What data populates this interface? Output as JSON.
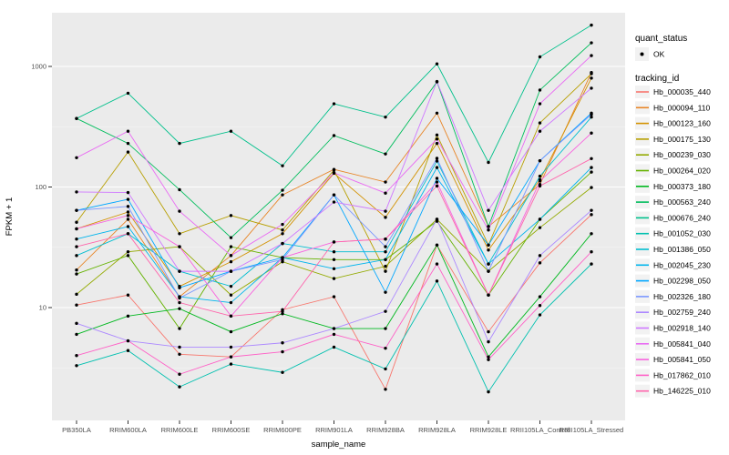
{
  "figure": {
    "y_axis": {
      "label": "FPKM + 1",
      "tick_labels": [
        "10",
        "100",
        "1000"
      ],
      "scale": "log10"
    },
    "x_axis": {
      "label": "sample_name"
    },
    "legend": {
      "quant_status": {
        "title": "quant_status",
        "items": [
          {
            "label": "OK",
            "marker": "black-point"
          }
        ]
      },
      "tracking": {
        "title": "tracking_id"
      }
    },
    "colors": {
      "panel_background": "#EBEBEB",
      "major_grid": "#FFFFFF",
      "minor_grid": "#F5F5F5",
      "tick_text": "#4D4D4D",
      "axis_title_text": "#000000",
      "point_color": "#000000",
      "legend_key_background": "#F2F2F2"
    }
  },
  "chart_data": {
    "type": "line",
    "title": "",
    "xlabel": "sample_name",
    "ylabel": "FPKM + 1",
    "yscale": "log10",
    "ylim": [
      1.16,
      2790
    ],
    "yticks": [
      10,
      100,
      1000
    ],
    "minor_gridlines": [
      3.162,
      31.62,
      316.2
    ],
    "grid": true,
    "legend_position": "right",
    "markers": "black points at every vertex (quant_status OK)",
    "categories": [
      "PB350LA",
      "RRIM600LA",
      "RRIM600LE",
      "RRIM600SE",
      "RRIM600PE",
      "RRIM901LA",
      "RRIM928BA",
      "RRIM928LA",
      "RRIM928LE",
      "RRII105LA_Control",
      "RRII105LA_Stressed"
    ],
    "series": [
      {
        "name": "Hb_000035_440",
        "color": "#F8766D",
        "values": [
          10.5,
          12.7,
          4.1,
          3.9,
          9.6,
          12.3,
          2.1,
          33,
          6.3,
          23.5,
          59
        ]
      },
      {
        "name": "Hb_000094_110",
        "color": "#E88526",
        "values": [
          20.5,
          54,
          12.3,
          27,
          86,
          140,
          110,
          410,
          47,
          105,
          890
        ]
      },
      {
        "name": "Hb_000123_160",
        "color": "#D39200",
        "values": [
          45,
          62,
          15,
          24,
          41,
          130,
          56,
          230,
          30,
          115,
          800
        ]
      },
      {
        "name": "Hb_000175_130",
        "color": "#B79F00",
        "values": [
          51,
          195,
          41,
          58,
          44,
          138,
          20,
          270,
          33,
          340,
          870
        ]
      },
      {
        "name": "Hb_000239_030",
        "color": "#93AA00",
        "values": [
          12.9,
          29,
          32,
          12.7,
          24,
          17.4,
          22,
          54,
          20,
          46,
          99
        ]
      },
      {
        "name": "Hb_000264_020",
        "color": "#64B200",
        "values": [
          19,
          27,
          6.7,
          32,
          26,
          25,
          25,
          52,
          12.7,
          54,
          133
        ]
      },
      {
        "name": "Hb_000373_180",
        "color": "#00B81F",
        "values": [
          6.0,
          8.5,
          9.8,
          6.3,
          8.9,
          6.7,
          6.7,
          33,
          3.9,
          12.3,
          41
        ]
      },
      {
        "name": "Hb_000563_240",
        "color": "#00BD5C",
        "values": [
          370,
          230,
          95,
          38,
          94,
          267,
          188,
          745,
          47,
          637,
          1570
        ]
      },
      {
        "name": "Hb_000676_240",
        "color": "#00C08B",
        "values": [
          370,
          600,
          230,
          290,
          150,
          490,
          380,
          1050,
          160,
          1200,
          2200
        ]
      },
      {
        "name": "Hb_001052_030",
        "color": "#00C0AF",
        "values": [
          3.3,
          4.4,
          2.2,
          3.4,
          2.9,
          4.7,
          3.1,
          16.6,
          2.0,
          8.7,
          23
        ]
      },
      {
        "name": "Hb_001386_050",
        "color": "#00BDD0",
        "values": [
          27,
          41,
          20,
          15,
          34,
          29,
          29,
          164,
          23,
          123,
          380
        ]
      },
      {
        "name": "Hb_002045_230",
        "color": "#00B5EC",
        "values": [
          37,
          47,
          12.3,
          11,
          26,
          21,
          25,
          145,
          23,
          54,
          145
        ]
      },
      {
        "name": "Hb_002298_050",
        "color": "#00A7FF",
        "values": [
          64,
          79,
          14.6,
          20,
          26,
          86,
          13.4,
          118,
          33,
          165,
          410
        ]
      },
      {
        "name": "Hb_002326_180",
        "color": "#7997FF",
        "values": [
          64,
          69,
          12,
          20,
          25,
          86,
          32,
          173,
          20,
          165,
          400
        ]
      },
      {
        "name": "Hb_002759_240",
        "color": "#AC88FF",
        "values": [
          7.4,
          5.3,
          4.7,
          4.7,
          5.1,
          6.7,
          9.3,
          54,
          5.2,
          27,
          64
        ]
      },
      {
        "name": "Hb_002918_140",
        "color": "#CF78FF",
        "values": [
          91,
          90,
          20,
          20,
          34,
          75,
          63,
          750,
          64,
          290,
          660
        ]
      },
      {
        "name": "Hb_005841_040",
        "color": "#E96BF3",
        "values": [
          175,
          290,
          63,
          27,
          49,
          131,
          89,
          250,
          44,
          490,
          1230
        ]
      },
      {
        "name": "Hb_005841_050",
        "color": "#F863DF",
        "values": [
          45,
          58,
          32,
          8.5,
          26,
          35,
          37,
          110,
          12.7,
          112,
          280
        ]
      },
      {
        "name": "Hb_017862_010",
        "color": "#FF61C7",
        "values": [
          4.0,
          5.3,
          2.8,
          3.9,
          4.3,
          6.0,
          4.6,
          23,
          3.7,
          10.4,
          29
        ]
      },
      {
        "name": "Hb_146225_010",
        "color": "#FF65AC",
        "values": [
          32,
          41,
          11,
          8.5,
          9.3,
          35,
          37,
          102,
          12.7,
          102,
          172
        ]
      }
    ]
  }
}
